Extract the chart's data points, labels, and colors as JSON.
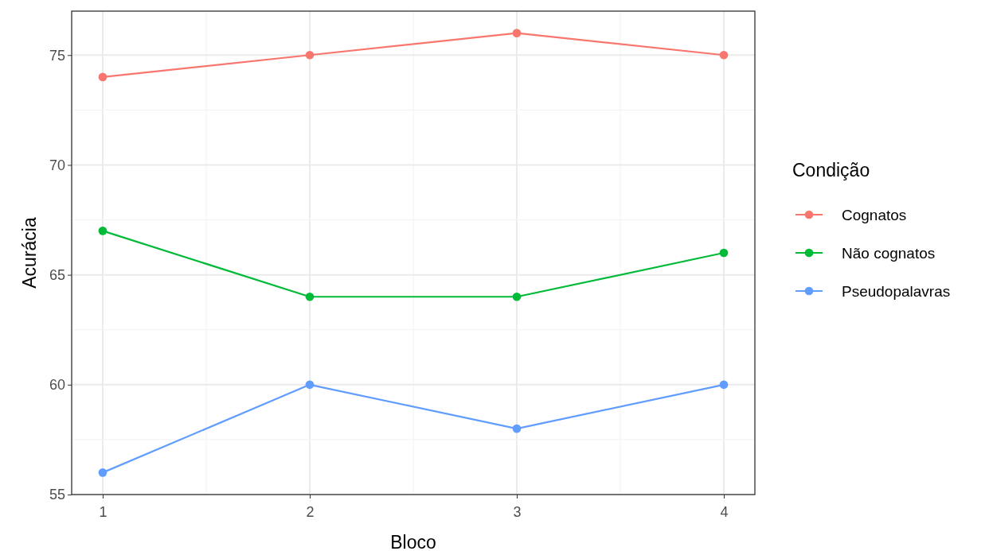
{
  "chart_data": {
    "type": "line",
    "xlabel": "Bloco",
    "ylabel": "Acurácia",
    "legend_title": "Condição",
    "x": [
      1,
      2,
      3,
      4
    ],
    "series": [
      {
        "name": "Cognatos",
        "color": "#f8766d",
        "values": [
          74,
          75,
          76,
          75
        ]
      },
      {
        "name": "Não cognatos",
        "color": "#00ba38",
        "values": [
          67,
          64,
          64,
          66
        ]
      },
      {
        "name": "Pseudopalavras",
        "color": "#619cff",
        "values": [
          56,
          60,
          58,
          60
        ]
      }
    ],
    "xlim": [
      0.85,
      4.15
    ],
    "xticks": [
      1,
      2,
      3,
      4
    ],
    "ylim": [
      55,
      77
    ],
    "yticks": [
      55,
      60,
      65,
      70,
      75
    ],
    "grid": true,
    "legend": "right",
    "marker": "circle",
    "line_style": "solid"
  }
}
